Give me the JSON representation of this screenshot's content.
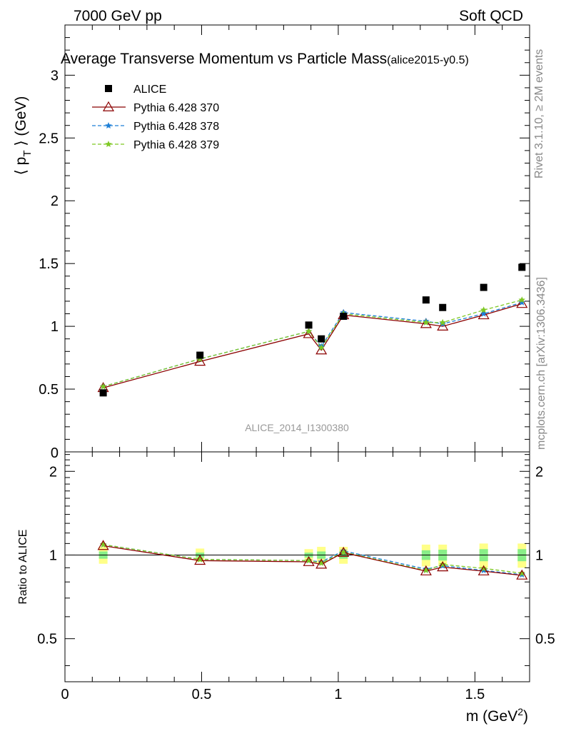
{
  "header": {
    "left": "7000 GeV pp",
    "right": "Soft QCD"
  },
  "side_labels": {
    "rivet": "Rivet 3.1.10, ≥ 2M events",
    "mcplots": "mcplots.cern.ch [arXiv:1306.3436]"
  },
  "chart_data": [
    {
      "type": "scatter",
      "title": "Average Transverse Momentum vs Particle Mass",
      "subtitle": "(alice2015-y0.5)",
      "ylabel_main": "⟨ p",
      "ylabel_sub": "T",
      "ylabel_end": " ⟩ (GeV)",
      "xlim": [
        0,
        1.7
      ],
      "ylim": [
        0,
        3.4
      ],
      "yticks": [
        "0.5",
        "1",
        "1.5",
        "2",
        "2.5",
        "3"
      ],
      "bottom_tick": "0",
      "watermark": "ALICE_2014_I1300380",
      "x": [
        0.14,
        0.494,
        0.892,
        0.938,
        1.019,
        1.321,
        1.382,
        1.532,
        1.672
      ],
      "series": [
        {
          "name": "ALICE",
          "color": "#000000",
          "marker": "square",
          "values": [
            0.47,
            0.77,
            1.01,
            0.9,
            1.08,
            1.21,
            1.15,
            1.31,
            1.47
          ]
        },
        {
          "name": "Pythia 6.428 370",
          "color": "#8b0000",
          "marker": "triangle",
          "line": "solid",
          "values": [
            0.51,
            0.72,
            0.94,
            0.81,
            1.09,
            1.02,
            1.0,
            1.09,
            1.18
          ]
        },
        {
          "name": "Pythia 6.428 378",
          "color": "#1e7fd6",
          "marker": "star",
          "line": "dashed",
          "values": [
            0.52,
            0.74,
            0.96,
            0.84,
            1.11,
            1.04,
            1.02,
            1.1,
            1.19
          ]
        },
        {
          "name": "Pythia 6.428 379",
          "color": "#7ec823",
          "marker": "star",
          "line": "dashed",
          "values": [
            0.52,
            0.74,
            0.96,
            0.83,
            1.1,
            1.03,
            1.03,
            1.13,
            1.21
          ]
        }
      ]
    },
    {
      "type": "scatter",
      "ylabel": "Ratio to ALICE",
      "xlabel": "m (GeV",
      "xlabel_sup": "2",
      "xlabel_end": ")",
      "xlim": [
        0,
        1.7
      ],
      "ylim": [
        0.35,
        2.35
      ],
      "xticks": [
        "0",
        "0.5",
        "1",
        "1.5"
      ],
      "yticks": [
        "0.5",
        "1",
        "2"
      ],
      "x": [
        0.14,
        0.494,
        0.892,
        0.938,
        1.019,
        1.321,
        1.382,
        1.532,
        1.672
      ],
      "uncertainty": {
        "total": [
          0.07,
          0.055,
          0.05,
          0.07,
          0.07,
          0.09,
          0.09,
          0.1,
          0.1
        ],
        "stat": [
          0.03,
          0.02,
          0.02,
          0.03,
          0.03,
          0.04,
          0.045,
          0.05,
          0.05
        ],
        "total_color": "#ffff88",
        "stat_color": "#88ee88"
      },
      "series": [
        {
          "name": "Pythia 6.428 370",
          "values": [
            1.08,
            0.955,
            0.945,
            0.925,
            1.02,
            0.875,
            0.905,
            0.875,
            0.845
          ]
        },
        {
          "name": "Pythia 6.428 378",
          "values": [
            1.09,
            0.965,
            0.955,
            0.945,
            1.035,
            0.89,
            0.915,
            0.88,
            0.85
          ]
        },
        {
          "name": "Pythia 6.428 379",
          "values": [
            1.09,
            0.965,
            0.955,
            0.935,
            1.025,
            0.88,
            0.925,
            0.895,
            0.86
          ]
        }
      ]
    }
  ]
}
